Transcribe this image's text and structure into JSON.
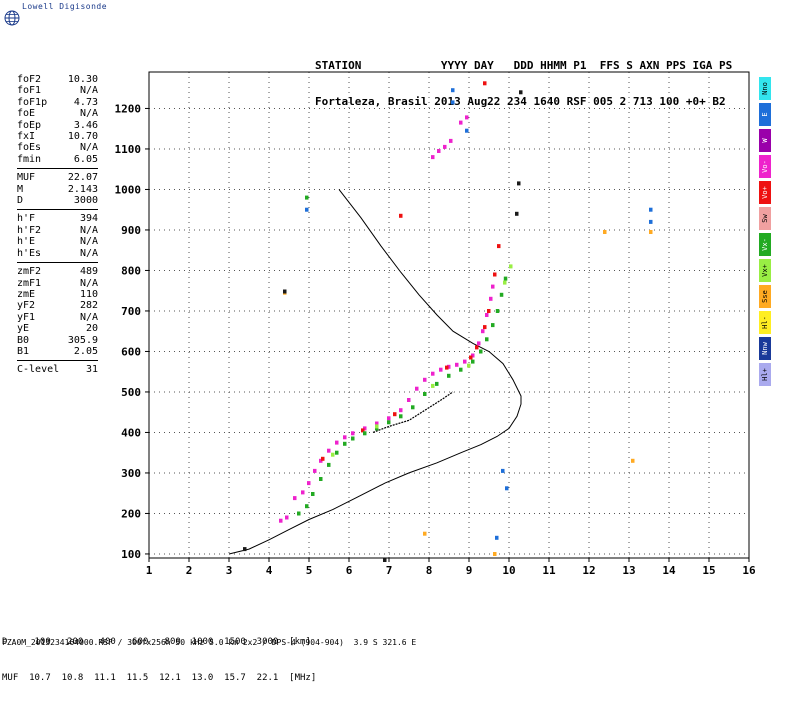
{
  "brand": {
    "name": "Lowell Digisonde",
    "logo_icon": "globe-icon"
  },
  "header": {
    "line1": "STATION            YYYY DAY   DDD HHMM P1  FFS S AXN PPS IGA PS",
    "line2": "Fortaleza, Brasil 2013 Aug22 234 1640 RSF 005 2 713 100 +0+ B2"
  },
  "params": {
    "group1": [
      {
        "label": "foF2",
        "value": "10.30"
      },
      {
        "label": "foF1",
        "value": "N/A"
      },
      {
        "label": "foF1p",
        "value": "4.73"
      },
      {
        "label": "foE",
        "value": "N/A"
      },
      {
        "label": "foEp",
        "value": "3.46"
      },
      {
        "label": "fxI",
        "value": "10.70"
      },
      {
        "label": "foEs",
        "value": "N/A"
      },
      {
        "label": "fmin",
        "value": "6.05"
      }
    ],
    "group2": [
      {
        "label": "MUF",
        "value": "22.07"
      },
      {
        "label": "M",
        "value": "2.143"
      },
      {
        "label": "D",
        "value": "3000"
      }
    ],
    "group3": [
      {
        "label": "h'F",
        "value": "394"
      },
      {
        "label": "h'F2",
        "value": "N/A"
      },
      {
        "label": "h'E",
        "value": "N/A"
      },
      {
        "label": "h'Es",
        "value": "N/A"
      }
    ],
    "group4": [
      {
        "label": "zmF2",
        "value": "489"
      },
      {
        "label": "zmF1",
        "value": "N/A"
      },
      {
        "label": "zmE",
        "value": "110"
      },
      {
        "label": "yF2",
        "value": "282"
      },
      {
        "label": "yF1",
        "value": "N/A"
      },
      {
        "label": "yE",
        "value": "20"
      },
      {
        "label": "B0",
        "value": "305.9"
      },
      {
        "label": "B1",
        "value": "2.05"
      }
    ],
    "clevel": {
      "label": "C-level",
      "value": "31"
    }
  },
  "legend": [
    {
      "label": "Nno",
      "color": "#33e5ee"
    },
    {
      "label": "E",
      "color": "#1e6fd9"
    },
    {
      "label": "W",
      "color": "#9a00aa"
    },
    {
      "label": "Vo-",
      "color": "#ee22cc"
    },
    {
      "label": "Vo+",
      "color": "#ee1111"
    },
    {
      "label": "Sw",
      "color": "#f0a0a0"
    },
    {
      "label": "Vx-",
      "color": "#22aa22"
    },
    {
      "label": "Vx+",
      "color": "#99ee44"
    },
    {
      "label": "Sse",
      "color": "#ffaa22"
    },
    {
      "label": "Hl-",
      "color": "#ffee22"
    },
    {
      "label": "Nnw",
      "color": "#1a3a9a"
    },
    {
      "label": "Hl+",
      "color": "#aaaaee"
    }
  ],
  "bottom": {
    "line1": "D     100   200   400   600   800  1000  1500  3000  [km]",
    "line2": "MUF  10.7  10.8  11.1  11.5  12.1  13.0  15.7  22.1  [MHz]"
  },
  "footer": "FZA0M_2013234164000.RSF / 300fx256h 50 kHz 5.0 km 2x2 / DPS-4 (904-904)  3.9 S 321.6 E",
  "chart_data": {
    "type": "scatter",
    "xlim": [
      1,
      16
    ],
    "ylim": [
      90,
      1290
    ],
    "x_ticks": [
      1,
      2,
      3,
      4,
      5,
      6,
      7,
      8,
      9,
      10,
      11,
      12,
      13,
      14,
      15,
      16
    ],
    "y_ticks": [
      100,
      200,
      300,
      400,
      500,
      600,
      700,
      800,
      900,
      1000,
      1100,
      1200
    ],
    "grid": "dotted",
    "series": [
      {
        "name": "Vo-",
        "color": "#ee22cc",
        "points": [
          [
            4.3,
            182
          ],
          [
            4.45,
            190
          ],
          [
            4.65,
            238
          ],
          [
            4.85,
            252
          ],
          [
            5.0,
            275
          ],
          [
            5.15,
            305
          ],
          [
            5.3,
            330
          ],
          [
            5.5,
            355
          ],
          [
            5.7,
            375
          ],
          [
            5.9,
            388
          ],
          [
            6.1,
            398
          ],
          [
            6.4,
            410
          ],
          [
            6.7,
            422
          ],
          [
            7.0,
            435
          ],
          [
            7.3,
            455
          ],
          [
            7.5,
            480
          ],
          [
            7.7,
            508
          ],
          [
            7.9,
            530
          ],
          [
            8.1,
            545
          ],
          [
            8.3,
            555
          ],
          [
            8.5,
            562
          ],
          [
            8.7,
            567
          ],
          [
            8.9,
            575
          ],
          [
            9.1,
            590
          ],
          [
            9.25,
            620
          ],
          [
            9.35,
            650
          ],
          [
            9.45,
            690
          ],
          [
            9.55,
            730
          ],
          [
            9.6,
            760
          ],
          [
            8.1,
            1080
          ],
          [
            8.25,
            1095
          ],
          [
            8.4,
            1105
          ],
          [
            8.55,
            1120
          ],
          [
            8.8,
            1165
          ],
          [
            8.95,
            1178
          ]
        ]
      },
      {
        "name": "Vo+",
        "color": "#ee1111",
        "points": [
          [
            5.35,
            335
          ],
          [
            6.35,
            405
          ],
          [
            7.15,
            445
          ],
          [
            8.45,
            560
          ],
          [
            9.05,
            585
          ],
          [
            9.2,
            610
          ],
          [
            9.4,
            660
          ],
          [
            9.5,
            700
          ],
          [
            9.65,
            790
          ],
          [
            9.75,
            860
          ],
          [
            9.4,
            1262
          ],
          [
            7.3,
            935
          ]
        ]
      },
      {
        "name": "Vx-",
        "color": "#22aa22",
        "points": [
          [
            4.75,
            200
          ],
          [
            4.95,
            218
          ],
          [
            5.1,
            248
          ],
          [
            5.3,
            285
          ],
          [
            5.5,
            320
          ],
          [
            5.7,
            350
          ],
          [
            5.9,
            372
          ],
          [
            6.1,
            385
          ],
          [
            6.4,
            398
          ],
          [
            6.7,
            410
          ],
          [
            7.0,
            425
          ],
          [
            7.3,
            440
          ],
          [
            7.6,
            462
          ],
          [
            7.9,
            495
          ],
          [
            8.2,
            520
          ],
          [
            8.5,
            540
          ],
          [
            8.8,
            555
          ],
          [
            9.1,
            575
          ],
          [
            9.3,
            600
          ],
          [
            9.45,
            630
          ],
          [
            9.6,
            665
          ],
          [
            9.72,
            700
          ],
          [
            9.82,
            740
          ],
          [
            9.92,
            780
          ],
          [
            4.95,
            980
          ]
        ]
      },
      {
        "name": "Vx+",
        "color": "#99ee44",
        "points": [
          [
            5.6,
            345
          ],
          [
            6.7,
            415
          ],
          [
            8.1,
            515
          ],
          [
            9.0,
            565
          ],
          [
            9.9,
            770
          ],
          [
            10.05,
            810
          ]
        ]
      },
      {
        "name": "Others",
        "color": "#1e6fd9",
        "points": [
          [
            8.6,
            1245
          ],
          [
            8.6,
            1215
          ],
          [
            13.55,
            950
          ],
          [
            13.55,
            920
          ],
          [
            9.7,
            140
          ],
          [
            9.85,
            305
          ],
          [
            9.95,
            262
          ],
          [
            8.95,
            1145
          ],
          [
            4.95,
            950
          ]
        ]
      },
      {
        "name": "Sse",
        "color": "#ffaa22",
        "points": [
          [
            7.9,
            150
          ],
          [
            13.55,
            895
          ],
          [
            12.4,
            895
          ],
          [
            13.1,
            330
          ],
          [
            4.4,
            745
          ],
          [
            9.65,
            100
          ]
        ]
      },
      {
        "name": "Vx+ (minor)",
        "color": "#1a1a1a",
        "points": [
          [
            10.3,
            1240
          ],
          [
            10.25,
            1015
          ],
          [
            10.2,
            940
          ],
          [
            6.9,
            85
          ],
          [
            3.4,
            112
          ],
          [
            4.4,
            748
          ]
        ]
      }
    ],
    "lines": [
      {
        "name": "profile",
        "color": "#000000",
        "points": [
          [
            5.75,
            1000
          ],
          [
            6.3,
            930
          ],
          [
            6.8,
            860
          ],
          [
            7.3,
            795
          ],
          [
            7.75,
            740
          ],
          [
            8.2,
            690
          ],
          [
            8.6,
            650
          ],
          [
            9.1,
            620
          ],
          [
            9.5,
            600
          ],
          [
            9.85,
            570
          ],
          [
            10.1,
            530
          ],
          [
            10.3,
            490
          ],
          [
            10.3,
            470
          ],
          [
            10.2,
            440
          ],
          [
            10.0,
            410
          ],
          [
            9.7,
            390
          ],
          [
            9.3,
            370
          ],
          [
            8.8,
            350
          ],
          [
            8.2,
            325
          ],
          [
            7.5,
            300
          ],
          [
            6.9,
            275
          ],
          [
            6.2,
            240
          ],
          [
            5.6,
            210
          ],
          [
            5.0,
            185
          ],
          [
            4.5,
            160
          ],
          [
            4.0,
            135
          ],
          [
            3.5,
            112
          ],
          [
            3.0,
            100
          ]
        ]
      },
      {
        "name": "trace",
        "color": "#000000",
        "points": [
          [
            6.6,
            400
          ],
          [
            7.0,
            415
          ],
          [
            7.5,
            430
          ],
          [
            7.9,
            455
          ],
          [
            8.3,
            480
          ],
          [
            8.6,
            500
          ]
        ]
      }
    ]
  }
}
